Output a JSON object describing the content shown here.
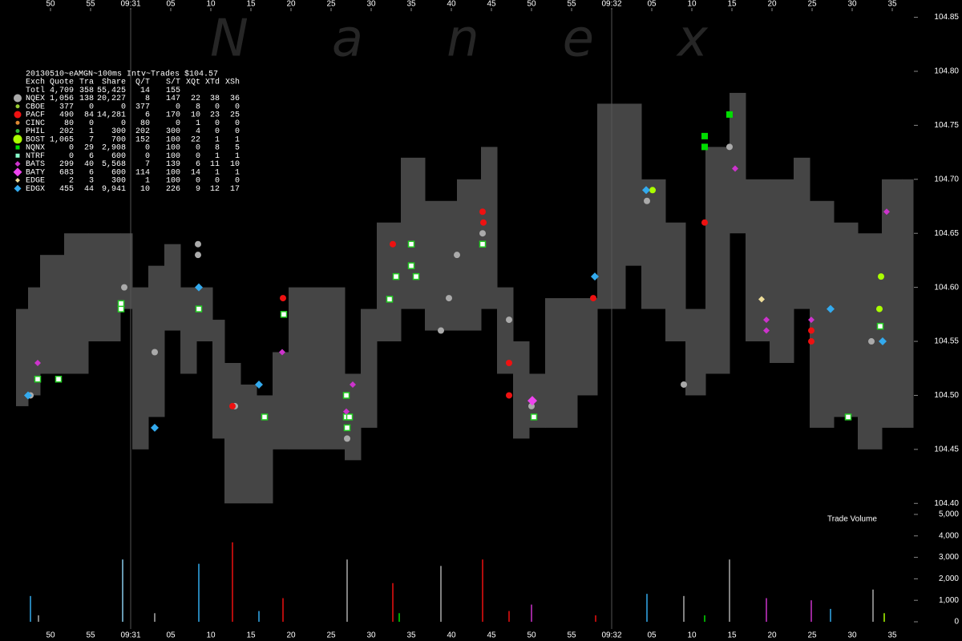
{
  "chart_data": [
    {
      "type": "scatter",
      "title": "20130510~eAMGN~100ms Intv~Trades $104.57",
      "watermark": "Nanex",
      "xlim": [
        43.7,
        157.7
      ],
      "xticks": [
        50,
        55,
        {
          "value": 60,
          "label": "09:31"
        },
        {
          "value": 65,
          "label": "05"
        },
        {
          "value": 70,
          "label": "10"
        },
        {
          "value": 75,
          "label": "15"
        },
        {
          "value": 80,
          "label": "20"
        },
        {
          "value": 85,
          "label": "25"
        },
        {
          "value": 90,
          "label": "30"
        },
        {
          "value": 95,
          "label": "35"
        },
        {
          "value": 100,
          "label": "40"
        },
        {
          "value": 105,
          "label": "45"
        },
        {
          "value": 110,
          "label": "50"
        },
        {
          "value": 115,
          "label": "55"
        },
        {
          "value": 120,
          "label": "09:32"
        },
        {
          "value": 125,
          "label": "05"
        },
        {
          "value": 130,
          "label": "10"
        },
        {
          "value": 135,
          "label": "15"
        },
        {
          "value": 140,
          "label": "20"
        },
        {
          "value": 145,
          "label": "25"
        },
        {
          "value": 150,
          "label": "30"
        },
        {
          "value": 155,
          "label": "35"
        }
      ],
      "ylim": [
        104.395,
        104.866
      ],
      "yticks": [
        {
          "value": 104.4,
          "label": "104.40"
        },
        104.45,
        {
          "value": 104.5,
          "label": "104.50"
        },
        104.55,
        {
          "value": 104.6,
          "label": "104.60"
        },
        104.65,
        {
          "value": 104.7,
          "label": "104.70"
        },
        104.75,
        {
          "value": 104.8,
          "label": "104.80"
        },
        104.85
      ],
      "grid": false,
      "quote_band": {
        "color": "#454545",
        "x": [
          45.7,
          47.2,
          48.7,
          51.7,
          54.7,
          58.7,
          60.2,
          62.2,
          64.2,
          66.2,
          68.2,
          70.2,
          71.7,
          73.7,
          75.7,
          77.7,
          79.7,
          83.7,
          86.7,
          88.7,
          90.7,
          93.7,
          96.7,
          100.7,
          103.7,
          105.7,
          107.7,
          109.7,
          111.7,
          115.7,
          118.2,
          121.7,
          123.7,
          126.7,
          129.2,
          131.7,
          134.7,
          136.7,
          139.7,
          142.7,
          144.7,
          147.7,
          150.7,
          153.7,
          156.2
        ],
        "high": [
          104.58,
          104.6,
          104.63,
          104.65,
          104.65,
          104.65,
          104.6,
          104.62,
          104.64,
          104.6,
          104.6,
          104.57,
          104.53,
          104.51,
          104.5,
          104.54,
          104.6,
          104.6,
          104.52,
          104.58,
          104.66,
          104.72,
          104.68,
          104.7,
          104.73,
          104.6,
          104.55,
          104.52,
          104.59,
          104.59,
          104.77,
          104.77,
          104.7,
          104.66,
          104.58,
          104.73,
          104.78,
          104.7,
          104.7,
          104.72,
          104.68,
          104.66,
          104.65,
          104.7,
          104.7
        ],
        "low": [
          104.49,
          104.5,
          104.52,
          104.52,
          104.55,
          104.58,
          104.45,
          104.48,
          104.56,
          104.52,
          104.55,
          104.46,
          104.4,
          104.4,
          104.4,
          104.45,
          104.45,
          104.45,
          104.44,
          104.47,
          104.55,
          104.58,
          104.56,
          104.56,
          104.58,
          104.52,
          104.46,
          104.47,
          104.47,
          104.5,
          104.58,
          104.62,
          104.58,
          104.55,
          104.5,
          104.52,
          104.65,
          104.55,
          104.53,
          104.58,
          104.47,
          104.48,
          104.45,
          104.47,
          104.47
        ]
      },
      "series": [
        {
          "name": "NQEX",
          "color": "#aaaaaa",
          "shape": "circle",
          "size": 4,
          "x": [
            47.5,
            59.2,
            63.0,
            68.4,
            68.4,
            73.0,
            87.0,
            98.7,
            99.7,
            100.7,
            103.9,
            107.2,
            110.0,
            124.4,
            129.0,
            134.7,
            152.4
          ],
          "values": [
            104.5,
            104.6,
            104.54,
            104.64,
            104.63,
            104.49,
            104.46,
            104.56,
            104.59,
            104.63,
            104.65,
            104.57,
            104.49,
            104.68,
            104.51,
            104.73,
            104.55
          ]
        },
        {
          "name": "PACF",
          "color": "#ee1111",
          "shape": "circle",
          "size": 4,
          "x": [
            72.7,
            79.0,
            92.7,
            103.9,
            104.0,
            107.2,
            107.2,
            117.7,
            131.6,
            144.9,
            144.9
          ],
          "values": [
            104.49,
            104.59,
            104.64,
            104.67,
            104.66,
            104.53,
            104.5,
            104.59,
            104.66,
            104.56,
            104.55
          ]
        },
        {
          "name": "BOST",
          "color": "#aaff00",
          "shape": "circle",
          "size": 4,
          "x": [
            125.1,
            153.6,
            153.4
          ],
          "values": [
            104.69,
            104.61,
            104.58
          ]
        },
        {
          "name": "NQNX",
          "color": "#00dd00",
          "shape": "square",
          "size": 4,
          "x": [
            134.7,
            131.6,
            131.6
          ],
          "values": [
            104.76,
            104.73,
            104.74
          ]
        },
        {
          "name": "NTRF",
          "color": "#ffffff",
          "edge": "#22cc22",
          "shape": "square",
          "size": 3.5,
          "x": [
            48.4,
            51.0,
            58.8,
            58.8,
            68.5,
            76.7,
            79.1,
            86.9,
            86.9,
            87.0,
            87.3,
            92.3,
            93.1,
            95.0,
            95.0,
            95.6,
            103.9,
            110.3,
            149.5,
            153.5
          ],
          "values": [
            104.515,
            104.515,
            104.58,
            104.585,
            104.58,
            104.48,
            104.575,
            104.5,
            104.48,
            104.47,
            104.48,
            104.589,
            104.61,
            104.64,
            104.62,
            104.61,
            104.64,
            104.48,
            104.48,
            104.564
          ]
        },
        {
          "name": "BATS",
          "color": "#cc33cc",
          "shape": "diamond",
          "size": 4,
          "x": [
            48.4,
            78.9,
            87.7,
            86.9,
            135.4,
            139.3,
            139.3,
            144.9,
            154.3
          ],
          "values": [
            104.53,
            104.54,
            104.51,
            104.485,
            104.71,
            104.57,
            104.56,
            104.57,
            104.67
          ]
        },
        {
          "name": "BATY",
          "color": "#ee44ee",
          "shape": "diamond",
          "size": 6,
          "x": [
            110.1
          ],
          "values": [
            104.495
          ]
        },
        {
          "name": "EDGE",
          "color": "#eedd99",
          "shape": "diamond",
          "size": 4,
          "x": [
            138.7
          ],
          "values": [
            104.589
          ]
        },
        {
          "name": "EDGX",
          "color": "#33aaee",
          "shape": "diamond",
          "size": 5,
          "x": [
            47.2,
            63.0,
            68.5,
            76.0,
            117.9,
            124.3,
            147.3,
            153.8
          ],
          "values": [
            104.5,
            104.47,
            104.6,
            104.51,
            104.61,
            104.69,
            104.58,
            104.55
          ]
        }
      ],
      "legend_table": {
        "columns": [
          "Exch",
          "Quote",
          "Tra",
          "Share",
          "Q/T",
          "S/T",
          "XQt",
          "XTd",
          "XSh"
        ],
        "rows": [
          {
            "cells": [
              "Totl",
              "4,709",
              "358",
              "55,425",
              "14",
              "155"
            ]
          },
          {
            "cells": [
              "NQEX",
              "1,056",
              "138",
              "20,227",
              "8",
              "147",
              "22",
              "38",
              "36"
            ],
            "shape": "circle",
            "size": 5,
            "color": "#aaaaaa"
          },
          {
            "cells": [
              "CBOE",
              "377",
              "0",
              "0",
              "377",
              "0",
              "8",
              "0",
              "0"
            ],
            "shape": "circle",
            "size": 2.5,
            "color": "#99cc33"
          },
          {
            "cells": [
              "PACF",
              "490",
              "84",
              "14,281",
              "6",
              "170",
              "10",
              "23",
              "25"
            ],
            "shape": "circle",
            "size": 4.5,
            "color": "#ee1111"
          },
          {
            "cells": [
              "CINC",
              "80",
              "0",
              "0",
              "80",
              "0",
              "1",
              "0",
              "0"
            ],
            "shape": "circle",
            "size": 2.5,
            "color": "#dd8833"
          },
          {
            "cells": [
              "PHIL",
              "202",
              "1",
              "300",
              "202",
              "300",
              "4",
              "0",
              "0"
            ],
            "shape": "circle",
            "size": 2.5,
            "color": "#33bb33"
          },
          {
            "cells": [
              "BOST",
              "1,065",
              "7",
              "700",
              "152",
              "100",
              "22",
              "1",
              "1"
            ],
            "shape": "circle",
            "size": 5.5,
            "color": "#aaff00"
          },
          {
            "cells": [
              "NQNX",
              "0",
              "29",
              "2,908",
              "0",
              "100",
              "0",
              "8",
              "5"
            ],
            "shape": "square",
            "size": 2.5,
            "color": "#00dd00"
          },
          {
            "cells": [
              "NTRF",
              "0",
              "6",
              "600",
              "0",
              "100",
              "0",
              "1",
              "1"
            ],
            "shape": "square",
            "size": 2.5,
            "color": "#88ffcc"
          },
          {
            "cells": [
              "BATS",
              "299",
              "40",
              "5,568",
              "7",
              "139",
              "6",
              "11",
              "10"
            ],
            "shape": "diamond",
            "size": 3.5,
            "color": "#cc33cc"
          },
          {
            "cells": [
              "BATY",
              "683",
              "6",
              "600",
              "114",
              "100",
              "14",
              "1",
              "1"
            ],
            "shape": "diamond",
            "size": 5.5,
            "color": "#ee44ee"
          },
          {
            "cells": [
              "EDGE",
              "2",
              "3",
              "300",
              "1",
              "100",
              "0",
              "0",
              "0"
            ],
            "shape": "diamond",
            "size": 3,
            "color": "#eedd99"
          },
          {
            "cells": [
              "EDGX",
              "455",
              "44",
              "9,941",
              "10",
              "226",
              "9",
              "12",
              "17"
            ],
            "shape": "diamond",
            "size": 4.5,
            "color": "#33aaee"
          }
        ]
      }
    },
    {
      "type": "bar",
      "title": "Trade Volume",
      "xlim": [
        43.7,
        157.7
      ],
      "ylim": [
        0,
        5000
      ],
      "yticks": [
        0,
        {
          "value": 1000,
          "label": "1,000"
        },
        {
          "value": 2000,
          "label": "2,000"
        },
        {
          "value": 3000,
          "label": "3,000"
        },
        {
          "value": 4000,
          "label": "4,000"
        },
        {
          "value": 5000,
          "label": "5,000"
        }
      ],
      "x": [
        47.5,
        48.5,
        59.0,
        63.0,
        68.5,
        72.7,
        76.0,
        79.0,
        87.0,
        92.7,
        93.5,
        98.7,
        103.9,
        107.2,
        110.0,
        118.0,
        124.4,
        129.0,
        131.6,
        134.7,
        139.3,
        144.9,
        147.3,
        152.6,
        154.0
      ],
      "values": [
        1200,
        300,
        2900,
        400,
        2700,
        3700,
        500,
        1100,
        2900,
        1800,
        400,
        2600,
        2900,
        500,
        800,
        300,
        1300,
        1200,
        300,
        2900,
        1100,
        1000,
        600,
        1500,
        400
      ],
      "colors": [
        "#33aaee",
        "#aaaaaa",
        "#88ccee",
        "#aaaaaa",
        "#33aaee",
        "#ee1111",
        "#33aaee",
        "#ee1111",
        "#aaaaaa",
        "#ee1111",
        "#00dd00",
        "#aaaaaa",
        "#ee1111",
        "#ee1111",
        "#cc33cc",
        "#ee1111",
        "#33aaee",
        "#aaaaaa",
        "#00dd00",
        "#aaaaaa",
        "#cc33cc",
        "#cc33cc",
        "#33aaee",
        "#aaaaaa",
        "#aaff00"
      ]
    }
  ]
}
